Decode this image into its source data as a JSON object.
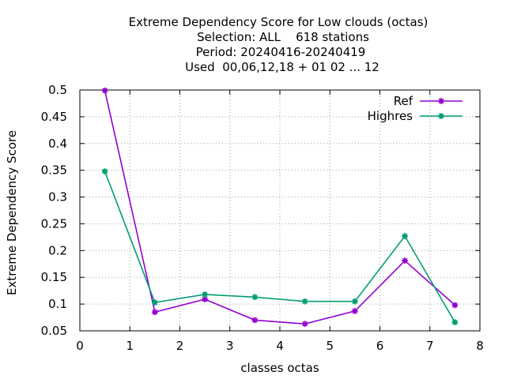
{
  "chart_data": {
    "type": "line",
    "title_lines": [
      "Extreme Dependency Score  for Low clouds (octas)",
      "Selection: ALL    618 stations",
      "Period: 20240416-20240419",
      "Used  00,06,12,18 + 01 02 ... 12"
    ],
    "xlabel": "classes octas",
    "ylabel": "Extreme Dependency Score",
    "xlim": [
      0,
      8
    ],
    "ylim": [
      0.05,
      0.5
    ],
    "xticks": [
      0,
      1,
      2,
      3,
      4,
      5,
      6,
      7,
      8
    ],
    "yticks": [
      0.05,
      0.1,
      0.15,
      0.2,
      0.25,
      0.3,
      0.35,
      0.4,
      0.45,
      0.5
    ],
    "grid": true,
    "legend_position": "top-right",
    "series": [
      {
        "name": "Ref",
        "color": "#9400d3",
        "x": [
          0.5,
          1.5,
          2.5,
          3.5,
          4.5,
          5.5,
          6.5,
          7.5
        ],
        "values": [
          0.499,
          0.085,
          0.109,
          0.07,
          0.063,
          0.087,
          0.181,
          0.098
        ]
      },
      {
        "name": "Highres",
        "color": "#009e73",
        "x": [
          0.5,
          1.5,
          2.5,
          3.5,
          4.5,
          5.5,
          6.5,
          7.5
        ],
        "values": [
          0.348,
          0.103,
          0.118,
          0.113,
          0.105,
          0.105,
          0.227,
          0.066
        ]
      }
    ]
  }
}
